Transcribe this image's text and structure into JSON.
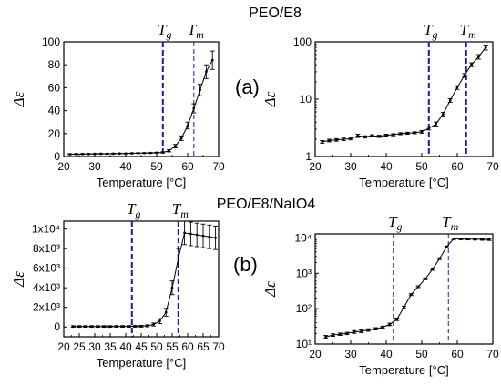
{
  "figure": {
    "titles": [
      "PEO/E8",
      "PEO/E8/NaIO4"
    ],
    "panel_tags": [
      "(a)",
      "(b)"
    ]
  },
  "chart_data": [
    {
      "type": "line",
      "row": 0,
      "col": 0,
      "xlabel": "Temperature [°C]",
      "ylabel": "Δε",
      "xlim": [
        20,
        70
      ],
      "ylim": [
        0,
        100
      ],
      "yscale": "linear",
      "xticks": [
        20,
        30,
        40,
        50,
        60,
        70
      ],
      "yticks": [
        {
          "v": 0,
          "t": "0"
        },
        {
          "v": 20,
          "t": "20"
        },
        {
          "v": 40,
          "t": "40"
        },
        {
          "v": 60,
          "t": "60"
        },
        {
          "v": 80,
          "t": "80"
        },
        {
          "v": 100,
          "t": "100"
        }
      ],
      "x": [
        22,
        24,
        26,
        28,
        30,
        32,
        34,
        36,
        38,
        40,
        42,
        44,
        46,
        48,
        50,
        52,
        54,
        56,
        58,
        60,
        62,
        64,
        66,
        68
      ],
      "y": [
        2,
        2.1,
        2.2,
        2.2,
        2.3,
        2.4,
        2.4,
        2.5,
        2.6,
        2.6,
        2.8,
        2.9,
        3.0,
        3.1,
        3.3,
        3.6,
        5,
        9,
        16,
        27,
        42,
        58,
        74,
        84
      ],
      "err": [
        0.3,
        0.3,
        0.3,
        0.3,
        0.3,
        0.3,
        0.3,
        0.3,
        0.3,
        0.3,
        0.3,
        0.3,
        0.3,
        0.3,
        0.4,
        0.5,
        1.0,
        1.5,
        2.0,
        3,
        4,
        5,
        6,
        8
      ],
      "vlines": [
        {
          "label": "Tg",
          "x": 52,
          "style": "thick"
        },
        {
          "label": "Tm",
          "x": 62,
          "style": "thin"
        }
      ]
    },
    {
      "type": "line",
      "row": 0,
      "col": 1,
      "xlabel": "Temperature [°C]",
      "ylabel": "Δε",
      "xlim": [
        20,
        70
      ],
      "ylim": [
        1,
        100
      ],
      "yscale": "log",
      "xticks": [
        20,
        30,
        40,
        50,
        60,
        70
      ],
      "yticks": [
        {
          "v": 1,
          "t": "1"
        },
        {
          "v": 10,
          "t": "10"
        },
        {
          "v": 100,
          "t": "100"
        }
      ],
      "x": [
        22,
        24,
        26,
        28,
        30,
        32,
        34,
        36,
        38,
        40,
        42,
        44,
        46,
        48,
        50,
        52,
        54,
        56,
        58,
        60,
        62,
        64,
        66,
        68
      ],
      "y": [
        1.8,
        1.9,
        1.95,
        2.0,
        2.05,
        2.3,
        2.2,
        2.3,
        2.25,
        2.35,
        2.4,
        2.5,
        2.55,
        2.6,
        2.7,
        3.1,
        3.7,
        5.5,
        9.5,
        16,
        26,
        40,
        55,
        80
      ],
      "err": [
        0.1,
        0.1,
        0.1,
        0.1,
        0.1,
        0.15,
        0.1,
        0.1,
        0.1,
        0.1,
        0.1,
        0.1,
        0.1,
        0.1,
        0.15,
        0.2,
        0.3,
        0.4,
        0.7,
        1.2,
        2,
        3,
        5,
        8
      ],
      "vlines": [
        {
          "label": "Tg",
          "x": 52,
          "style": "thick"
        },
        {
          "label": "Tm",
          "x": 62.5,
          "style": "thick"
        }
      ]
    },
    {
      "type": "line",
      "row": 1,
      "col": 0,
      "xlabel": "Temperature [°C]",
      "ylabel": "Δε",
      "xlim": [
        20,
        70
      ],
      "ylim": [
        -1000,
        10800
      ],
      "yscale": "linear",
      "xticks": [
        20,
        25,
        30,
        35,
        40,
        45,
        50,
        55,
        60,
        65,
        70
      ],
      "yticks": [
        {
          "v": 0,
          "t": "0"
        },
        {
          "v": 2000,
          "t": "2x10³"
        },
        {
          "v": 4000,
          "t": "4x10³"
        },
        {
          "v": 6000,
          "t": "6x10³"
        },
        {
          "v": 8000,
          "t": "8x10³"
        },
        {
          "v": 10000,
          "t": "1x10⁴"
        }
      ],
      "x": [
        23,
        25,
        27,
        29,
        31,
        33,
        35,
        37,
        39,
        41,
        43,
        45,
        47,
        49,
        51,
        53,
        55,
        57,
        59,
        61,
        63,
        65,
        67,
        69
      ],
      "y": [
        50,
        50,
        50,
        50,
        50,
        50,
        50,
        60,
        60,
        60,
        70,
        80,
        120,
        250,
        600,
        1500,
        4000,
        7000,
        9600,
        9500,
        9400,
        9300,
        9200,
        9100
      ],
      "err": [
        80,
        80,
        80,
        80,
        80,
        80,
        80,
        80,
        80,
        80,
        80,
        90,
        100,
        150,
        250,
        400,
        700,
        1000,
        1200,
        1200,
        1200,
        1200,
        1200,
        1200
      ],
      "vlines": [
        {
          "label": "Tg",
          "x": 42,
          "style": "thick"
        },
        {
          "label": "Tm",
          "x": 57,
          "style": "thick"
        }
      ]
    },
    {
      "type": "line",
      "row": 1,
      "col": 1,
      "xlabel": "Temperature [°C]",
      "ylabel": "Δε",
      "xlim": [
        20,
        70
      ],
      "ylim": [
        10,
        13000
      ],
      "yscale": "log",
      "xticks": [
        20,
        30,
        40,
        50,
        60,
        70
      ],
      "yticks": [
        {
          "v": 10,
          "t": "10¹"
        },
        {
          "v": 100,
          "t": "10²"
        },
        {
          "v": 1000,
          "t": "10³"
        },
        {
          "v": 10000,
          "t": "10⁴"
        }
      ],
      "x": [
        23,
        25,
        27,
        29,
        31,
        33,
        35,
        37,
        39,
        41,
        43,
        45,
        47,
        49,
        51,
        53,
        55,
        57,
        59,
        61,
        63,
        65,
        67,
        69
      ],
      "y": [
        16,
        18,
        19,
        20,
        22,
        23,
        25,
        27,
        30,
        36,
        50,
        110,
        250,
        420,
        700,
        1300,
        2600,
        5600,
        9500,
        9400,
        9300,
        9200,
        9100,
        9000
      ],
      "err": [
        1.5,
        1.5,
        1.5,
        1.5,
        2,
        2,
        2,
        2,
        2,
        3,
        4,
        8,
        15,
        25,
        40,
        80,
        150,
        300,
        500,
        500,
        500,
        500,
        500,
        500
      ],
      "vlines": [
        {
          "label": "Tg",
          "x": 42,
          "style": "thin"
        },
        {
          "label": "Tm",
          "x": 57.5,
          "style": "thin"
        }
      ]
    }
  ]
}
